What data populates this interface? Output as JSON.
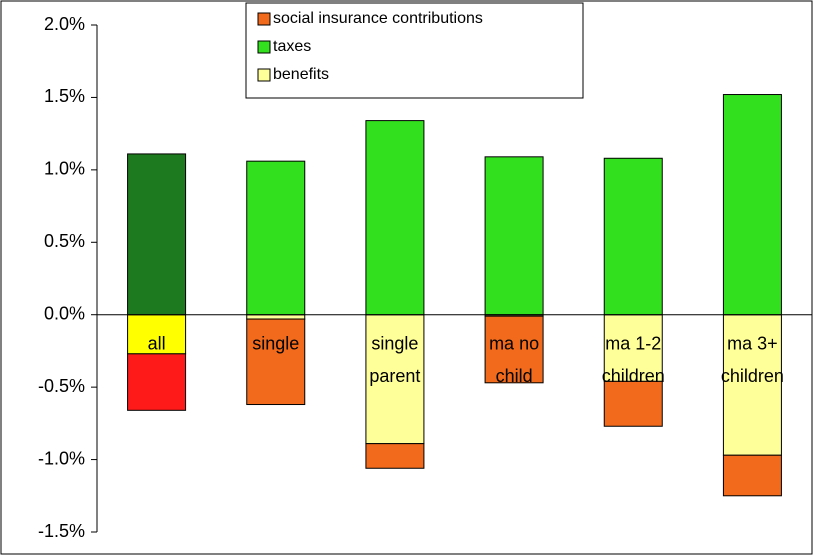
{
  "chart_data": {
    "type": "stacked-bar",
    "categories": [
      "all",
      "single",
      "single\nparent",
      "ma no\nchild",
      "ma 1-2\nchildren",
      "ma 3+\nchildren"
    ],
    "series": [
      {
        "name": "social insurance contributions",
        "color": "#f26a1b",
        "colors": [
          "#ff1a1a",
          "#f26a1b",
          "#f26a1b",
          "#f26a1b",
          "#f26a1b",
          "#f26a1b"
        ],
        "values": [
          -0.39,
          -0.59,
          -0.17,
          -0.46,
          -0.31,
          -0.28
        ]
      },
      {
        "name": "taxes",
        "color": "#33e01e",
        "colors": [
          "#1e7a1e",
          "#33e01e",
          "#33e01e",
          "#33e01e",
          "#33e01e",
          "#33e01e"
        ],
        "values": [
          1.11,
          1.06,
          1.34,
          1.09,
          1.08,
          1.52
        ]
      },
      {
        "name": "benefits",
        "color": "#ffff99",
        "colors": [
          "#ffff00",
          "#ffff99",
          "#ffff99",
          "#ffff99",
          "#ffff99",
          "#ffff99"
        ],
        "values": [
          -0.27,
          -0.03,
          -0.89,
          -0.01,
          -0.46,
          -0.97
        ]
      }
    ],
    "ylim": [
      -1.5,
      2.0
    ],
    "yticks": [
      {
        "value": -1.5,
        "label": "-1.5%"
      },
      {
        "value": -1.0,
        "label": "-1.0%"
      },
      {
        "value": -0.5,
        "label": "-0.5%"
      },
      {
        "value": 0,
        "label": "0.0%"
      },
      {
        "value": 0.5,
        "label": "0.5%"
      },
      {
        "value": 1.0,
        "label": "1.0%"
      },
      {
        "value": 1.5,
        "label": "1.5%"
      },
      {
        "value": 2.0,
        "label": "2.0%"
      }
    ],
    "grid": false,
    "legend": "top"
  }
}
